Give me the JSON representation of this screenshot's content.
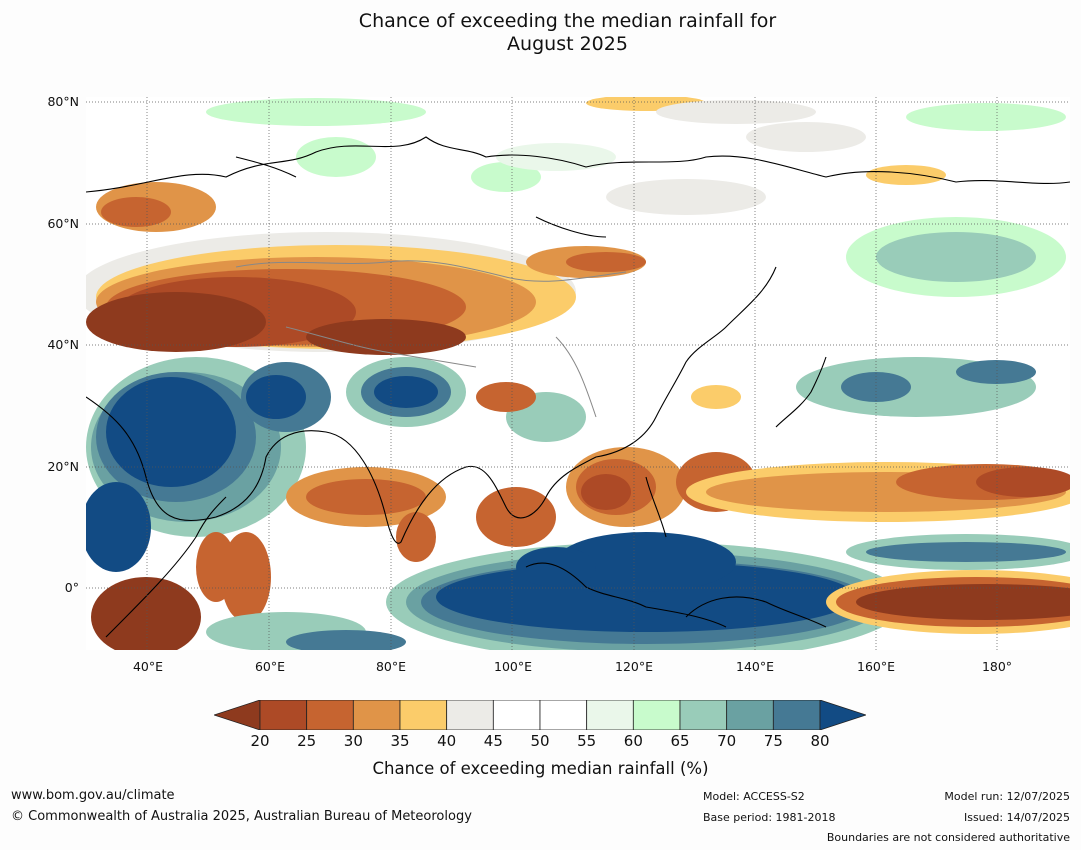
{
  "title": {
    "line1": "Chance of exceeding the median rainfall for",
    "line2": "August 2025"
  },
  "map": {
    "type": "probability-map",
    "region": "Asia, Indian Ocean and western Pacific",
    "latitude_labels": [
      "80°N",
      "60°N",
      "40°N",
      "20°N",
      "0°"
    ],
    "longitude_labels": [
      "40°E",
      "60°E",
      "80°E",
      "100°E",
      "120°E",
      "140°E",
      "160°E",
      "180°"
    ],
    "wet_signal_regions": [
      "Maritime Continent / Indonesia",
      "Arabian Sea and Horn of Africa",
      "Tibetan Plateau",
      "North-west Pacific near 30°N"
    ],
    "dry_signal_regions": [
      "Central Asia and Caspian region",
      "Near-equatorial central Pacific",
      "South China Sea and Philippines",
      "Bay of Bengal",
      "Tropical western Pacific near 15–20°N"
    ]
  },
  "colorbar": {
    "label": "Chance of exceeding median rainfall (%)",
    "ticks": [
      "20",
      "25",
      "30",
      "35",
      "40",
      "45",
      "50",
      "55",
      "60",
      "65",
      "70",
      "75",
      "80"
    ],
    "colors": [
      "#8e3a1e",
      "#ad4a26",
      "#c66430",
      "#e09448",
      "#fbcc6a",
      "#ecebe7",
      "#ffffff",
      "#ffffff",
      "#eaf7ea",
      "#c8fbcc",
      "#99ccb9",
      "#6aa1a2",
      "#457994",
      "#124b84"
    ]
  },
  "footer": {
    "website": "www.bom.gov.au/climate",
    "copyright": "© Commonwealth of Australia 2025, Australian Bureau of Meteorology",
    "model": "Model: ACCESS-S2",
    "base_period": "Base period: 1981-2018",
    "model_run": "Model run: 12/07/2025",
    "issued": "Issued: 14/07/2025",
    "disclaimer": "Boundaries are not considered authoritative"
  }
}
